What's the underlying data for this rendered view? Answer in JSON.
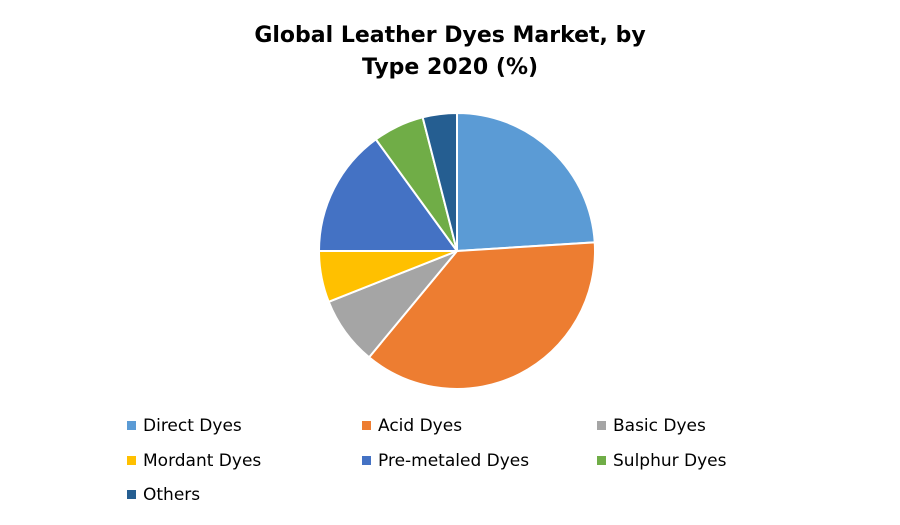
{
  "chart_data": {
    "type": "pie",
    "title": "Global Leather Dyes Market, by Type 2020 (%)",
    "categories": [
      "Direct Dyes",
      "Acid Dyes",
      "Basic Dyes",
      "Mordant Dyes",
      "Pre-metaled Dyes",
      "Sulphur Dyes",
      "Others"
    ],
    "values": [
      24,
      37,
      8,
      6,
      15,
      6,
      4
    ],
    "colors": [
      "#5b9bd5",
      "#ed7d31",
      "#a5a5a5",
      "#ffc000",
      "#4472c4",
      "#70ad47",
      "#255e91"
    ],
    "legend": "bottom"
  }
}
